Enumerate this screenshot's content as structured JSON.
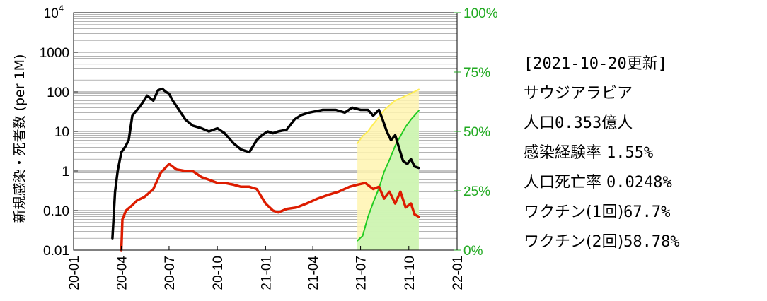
{
  "chart_data": {
    "type": "line",
    "ylabel": "新規感染・死者数 (per 1M)",
    "yscale": "log",
    "ylim": [
      0.01,
      10000
    ],
    "yticks": [
      {
        "value": 0.01,
        "label": "0.01"
      },
      {
        "value": 0.1,
        "label": "0.10"
      },
      {
        "value": 1,
        "label": "1"
      },
      {
        "value": 10,
        "label": "10"
      },
      {
        "value": 100,
        "label": "100"
      },
      {
        "value": 1000,
        "label": "1000"
      },
      {
        "value": 10000,
        "label": "10",
        "sup": "4"
      }
    ],
    "y2ticks": [
      "0%",
      "25%",
      "50%",
      "75%",
      "100%"
    ],
    "y2lim": [
      0,
      100
    ],
    "xlim": [
      "2020-01-01",
      "2022-01-01"
    ],
    "xticks": [
      "20-01",
      "20-04",
      "20-07",
      "20-10",
      "21-01",
      "21-04",
      "21-07",
      "21-10",
      "22-01"
    ],
    "grid": "horizontal",
    "colors": {
      "cases": "#000000",
      "deaths": "#dd1c00",
      "vaccine1": "#ffee55",
      "vaccine2": "#22cc22",
      "vaccine2_fill": "#c8f5b4",
      "vaccine1_fill": "#fff4b0",
      "right_axis": "#22aa22"
    },
    "series": [
      {
        "key": "cases",
        "x": [
          "2020-03-15",
          "2020-03-20",
          "2020-03-25",
          "2020-04-01",
          "2020-04-08",
          "2020-04-15",
          "2020-04-22",
          "2020-05-01",
          "2020-05-10",
          "2020-05-20",
          "2020-06-01",
          "2020-06-10",
          "2020-06-18",
          "2020-06-25",
          "2020-07-01",
          "2020-07-08",
          "2020-07-20",
          "2020-08-01",
          "2020-08-15",
          "2020-09-01",
          "2020-09-15",
          "2020-10-01",
          "2020-10-15",
          "2020-11-01",
          "2020-11-15",
          "2020-12-01",
          "2020-12-15",
          "2020-12-25",
          "2021-01-05",
          "2021-01-15",
          "2021-01-25",
          "2021-02-10",
          "2021-02-25",
          "2021-03-10",
          "2021-03-25",
          "2021-04-05",
          "2021-04-20",
          "2021-05-01",
          "2021-05-15",
          "2021-06-01",
          "2021-06-15",
          "2021-07-01",
          "2021-07-15",
          "2021-07-25",
          "2021-08-05",
          "2021-08-12",
          "2021-08-20",
          "2021-08-28",
          "2021-09-05",
          "2021-09-12",
          "2021-09-20",
          "2021-09-28",
          "2021-10-05",
          "2021-10-12",
          "2021-10-20"
        ],
        "values": [
          0.02,
          0.3,
          1.0,
          3.0,
          4.0,
          6.0,
          25,
          35,
          50,
          80,
          60,
          110,
          120,
          100,
          90,
          60,
          35,
          20,
          14,
          12,
          10,
          12,
          9,
          5,
          3.5,
          3,
          6,
          8,
          10,
          9,
          10,
          11,
          20,
          26,
          30,
          32,
          35,
          35,
          35,
          30,
          40,
          35,
          35,
          25,
          35,
          20,
          10,
          6,
          8,
          4,
          1.8,
          1.5,
          2,
          1.3,
          1.2
        ]
      },
      {
        "key": "deaths",
        "x": [
          "2020-04-01",
          "2020-04-03",
          "2020-04-10",
          "2020-04-20",
          "2020-05-01",
          "2020-05-15",
          "2020-06-01",
          "2020-06-15",
          "2020-07-01",
          "2020-07-15",
          "2020-08-01",
          "2020-08-15",
          "2020-09-01",
          "2020-09-15",
          "2020-10-01",
          "2020-10-15",
          "2020-11-01",
          "2020-11-15",
          "2020-12-01",
          "2020-12-15",
          "2021-01-01",
          "2021-01-15",
          "2021-01-25",
          "2021-02-10",
          "2021-03-01",
          "2021-03-20",
          "2021-04-10",
          "2021-05-01",
          "2021-05-20",
          "2021-06-10",
          "2021-06-25",
          "2021-07-10",
          "2021-07-25",
          "2021-08-05",
          "2021-08-15",
          "2021-08-25",
          "2021-09-05",
          "2021-09-15",
          "2021-09-25",
          "2021-10-05",
          "2021-10-12",
          "2021-10-20"
        ],
        "values": [
          0.01,
          0.06,
          0.1,
          0.13,
          0.18,
          0.22,
          0.35,
          0.9,
          1.5,
          1.1,
          1.0,
          1.0,
          0.7,
          0.6,
          0.5,
          0.5,
          0.45,
          0.4,
          0.4,
          0.35,
          0.15,
          0.1,
          0.09,
          0.11,
          0.12,
          0.15,
          0.2,
          0.25,
          0.3,
          0.4,
          0.45,
          0.5,
          0.35,
          0.4,
          0.2,
          0.3,
          0.15,
          0.3,
          0.12,
          0.15,
          0.08,
          0.07
        ]
      },
      {
        "key": "vaccine1",
        "unit": "%",
        "x": [
          "2021-06-25",
          "2021-07-05",
          "2021-07-15",
          "2021-07-25",
          "2021-08-05",
          "2021-08-15",
          "2021-08-25",
          "2021-09-05",
          "2021-09-15",
          "2021-09-25",
          "2021-10-05",
          "2021-10-20"
        ],
        "values": [
          45,
          48,
          50,
          53,
          56,
          59,
          61,
          63,
          64,
          65,
          66,
          67.7
        ]
      },
      {
        "key": "vaccine2",
        "unit": "%",
        "x": [
          "2021-06-25",
          "2021-07-05",
          "2021-07-15",
          "2021-07-25",
          "2021-08-05",
          "2021-08-15",
          "2021-08-25",
          "2021-09-05",
          "2021-09-15",
          "2021-09-25",
          "2021-10-05",
          "2021-10-20"
        ],
        "values": [
          4,
          6,
          14,
          20,
          26,
          33,
          38,
          44,
          48,
          52,
          55,
          58.78
        ]
      }
    ]
  },
  "info": {
    "date": "[2021-10-20更新]",
    "country": "サウジアラビア",
    "population_label": "人口",
    "population_value": "0.353億人",
    "infection_label": "感染経験率",
    "infection_value": "1.55%",
    "death_label": "人口死亡率",
    "death_value": "0.0248%",
    "vax1_label": "ワクチン(1回)",
    "vax1_value": "67.7%",
    "vax2_label": "ワクチン(2回)",
    "vax2_value": "58.78%"
  }
}
